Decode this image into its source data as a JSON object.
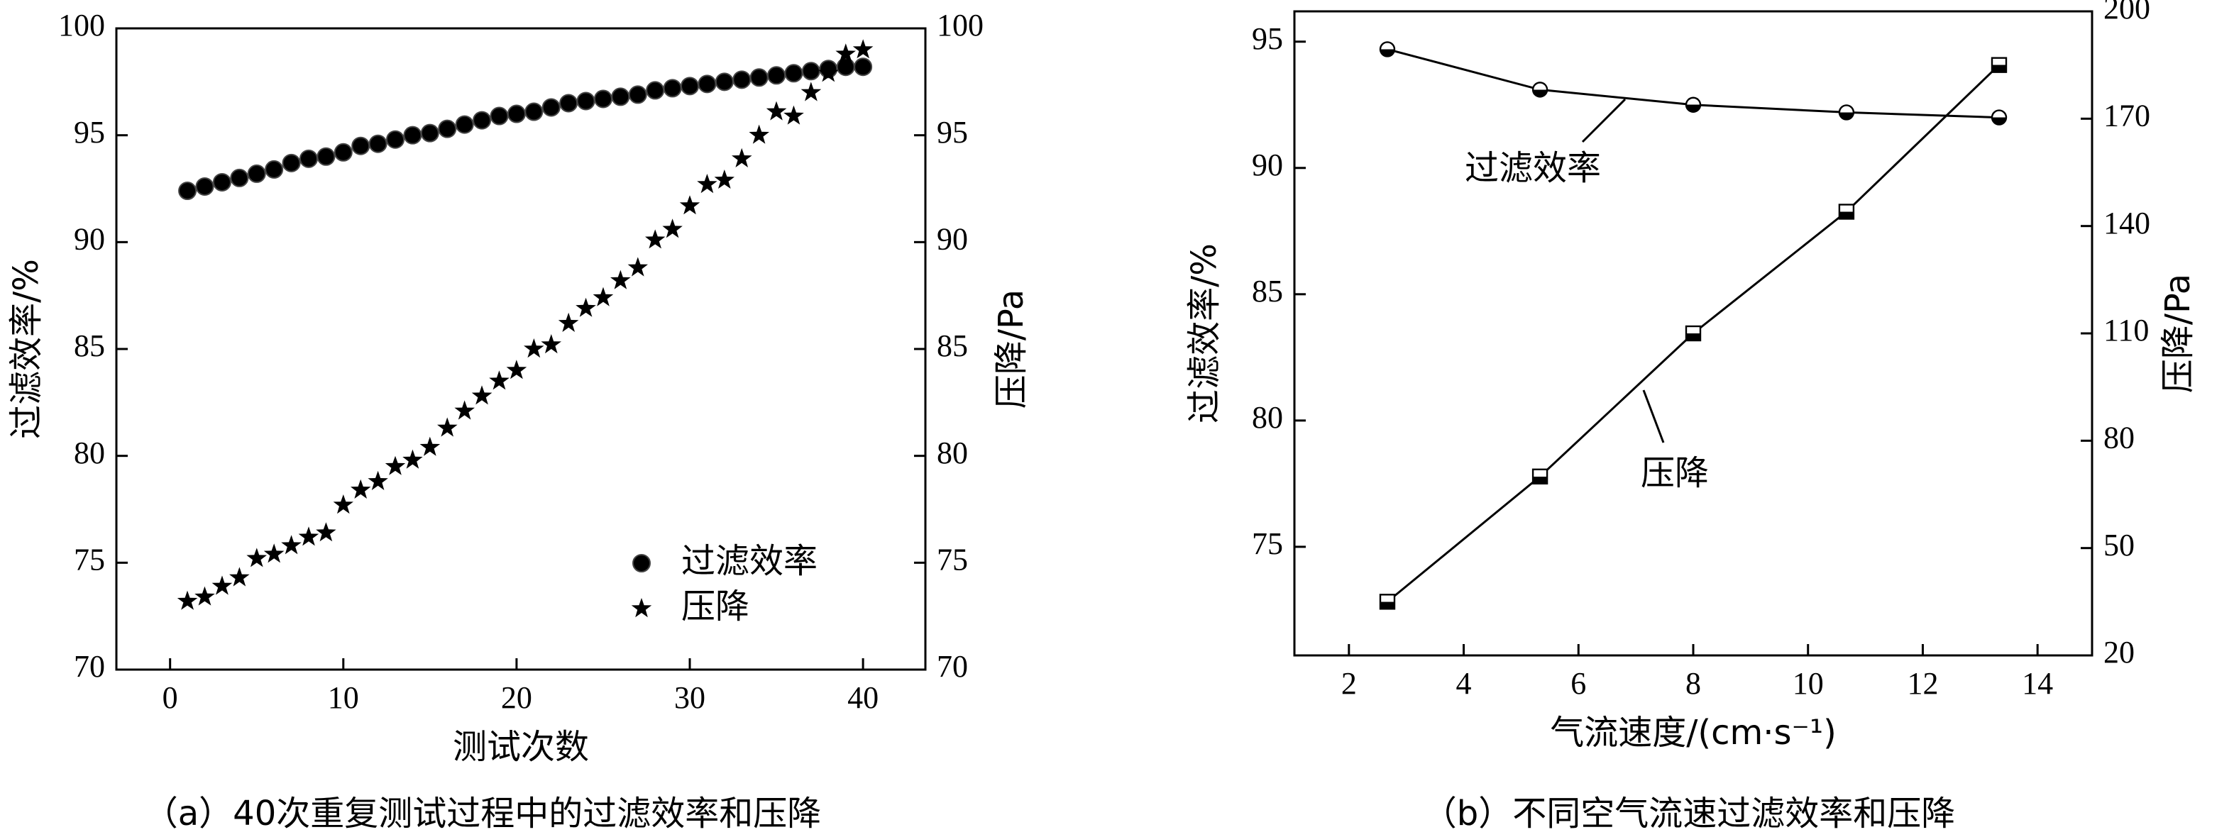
{
  "chart_data": [
    {
      "type": "scatter",
      "caption": "（a）40次重复测试过程中的过滤效率和压降",
      "xlabel": "测试次数",
      "ylabel": "过滤效率/%",
      "y2label": "压降/Pa",
      "x": [
        1,
        2,
        3,
        4,
        5,
        6,
        7,
        8,
        9,
        10,
        11,
        12,
        13,
        14,
        15,
        16,
        17,
        18,
        19,
        20,
        21,
        22,
        23,
        24,
        25,
        26,
        27,
        28,
        29,
        30,
        31,
        32,
        33,
        34,
        35,
        36,
        37,
        38,
        39,
        40
      ],
      "series": [
        {
          "name": "过滤效率",
          "color": "#000000",
          "marker": "circle",
          "values": [
            92.4,
            92.6,
            92.8,
            93.0,
            93.2,
            93.4,
            93.7,
            93.9,
            94.0,
            94.2,
            94.5,
            94.6,
            94.8,
            95.0,
            95.1,
            95.3,
            95.5,
            95.7,
            95.9,
            96.0,
            96.1,
            96.3,
            96.5,
            96.6,
            96.7,
            96.8,
            96.9,
            97.1,
            97.2,
            97.3,
            97.4,
            97.5,
            97.6,
            97.7,
            97.8,
            97.9,
            98.0,
            98.1,
            98.2,
            98.2
          ]
        },
        {
          "name": "压降",
          "color": "#000000",
          "marker": "star",
          "axis": "y2",
          "values": [
            73.2,
            73.4,
            73.9,
            74.3,
            75.2,
            75.4,
            75.8,
            76.2,
            76.4,
            77.7,
            78.4,
            78.8,
            79.5,
            79.8,
            80.4,
            81.3,
            82.1,
            82.8,
            83.5,
            84.0,
            85.0,
            85.2,
            86.2,
            86.9,
            87.4,
            88.2,
            88.8,
            90.1,
            90.6,
            91.7,
            92.7,
            92.9,
            93.9,
            95.0,
            96.1,
            95.9,
            97.0,
            97.9,
            98.8,
            99.0
          ]
        }
      ],
      "xlim": [
        -3.1,
        43.6
      ],
      "xticks": [
        0,
        10,
        20,
        30,
        40
      ],
      "ylim": [
        70,
        100
      ],
      "yticks": [
        70,
        75,
        80,
        85,
        90,
        95,
        100
      ],
      "y2lim": [
        70,
        100
      ],
      "y2ticks": [
        70,
        75,
        80,
        85,
        90,
        95,
        100
      ],
      "legend": "lower right"
    },
    {
      "type": "line",
      "caption": "（b）不同空气流速过滤效率和压降",
      "xlabel": "气流速度/(cm·s⁻¹)",
      "ylabel": "过滤效率/%",
      "y2label": "压降/Pa",
      "x": [
        2.67,
        5.33,
        8.0,
        10.67,
        13.33
      ],
      "series": [
        {
          "name": "过滤效率",
          "color": "#000000",
          "marker": "halfcircle",
          "values": [
            94.7,
            93.1,
            92.5,
            92.2,
            92.0
          ]
        },
        {
          "name": "压降",
          "color": "#000000",
          "marker": "halfsquare",
          "axis": "y2",
          "values": [
            35,
            70,
            110,
            144,
            185
          ]
        }
      ],
      "xlim": [
        1.05,
        14.95
      ],
      "xticks": [
        2,
        4,
        6,
        8,
        10,
        12,
        14
      ],
      "ylim": [
        70.7,
        96.2
      ],
      "yticks": [
        75,
        80,
        85,
        90,
        95
      ],
      "y2lim": [
        20,
        200
      ],
      "y2ticks": [
        20,
        50,
        80,
        110,
        140,
        170,
        200
      ]
    }
  ]
}
